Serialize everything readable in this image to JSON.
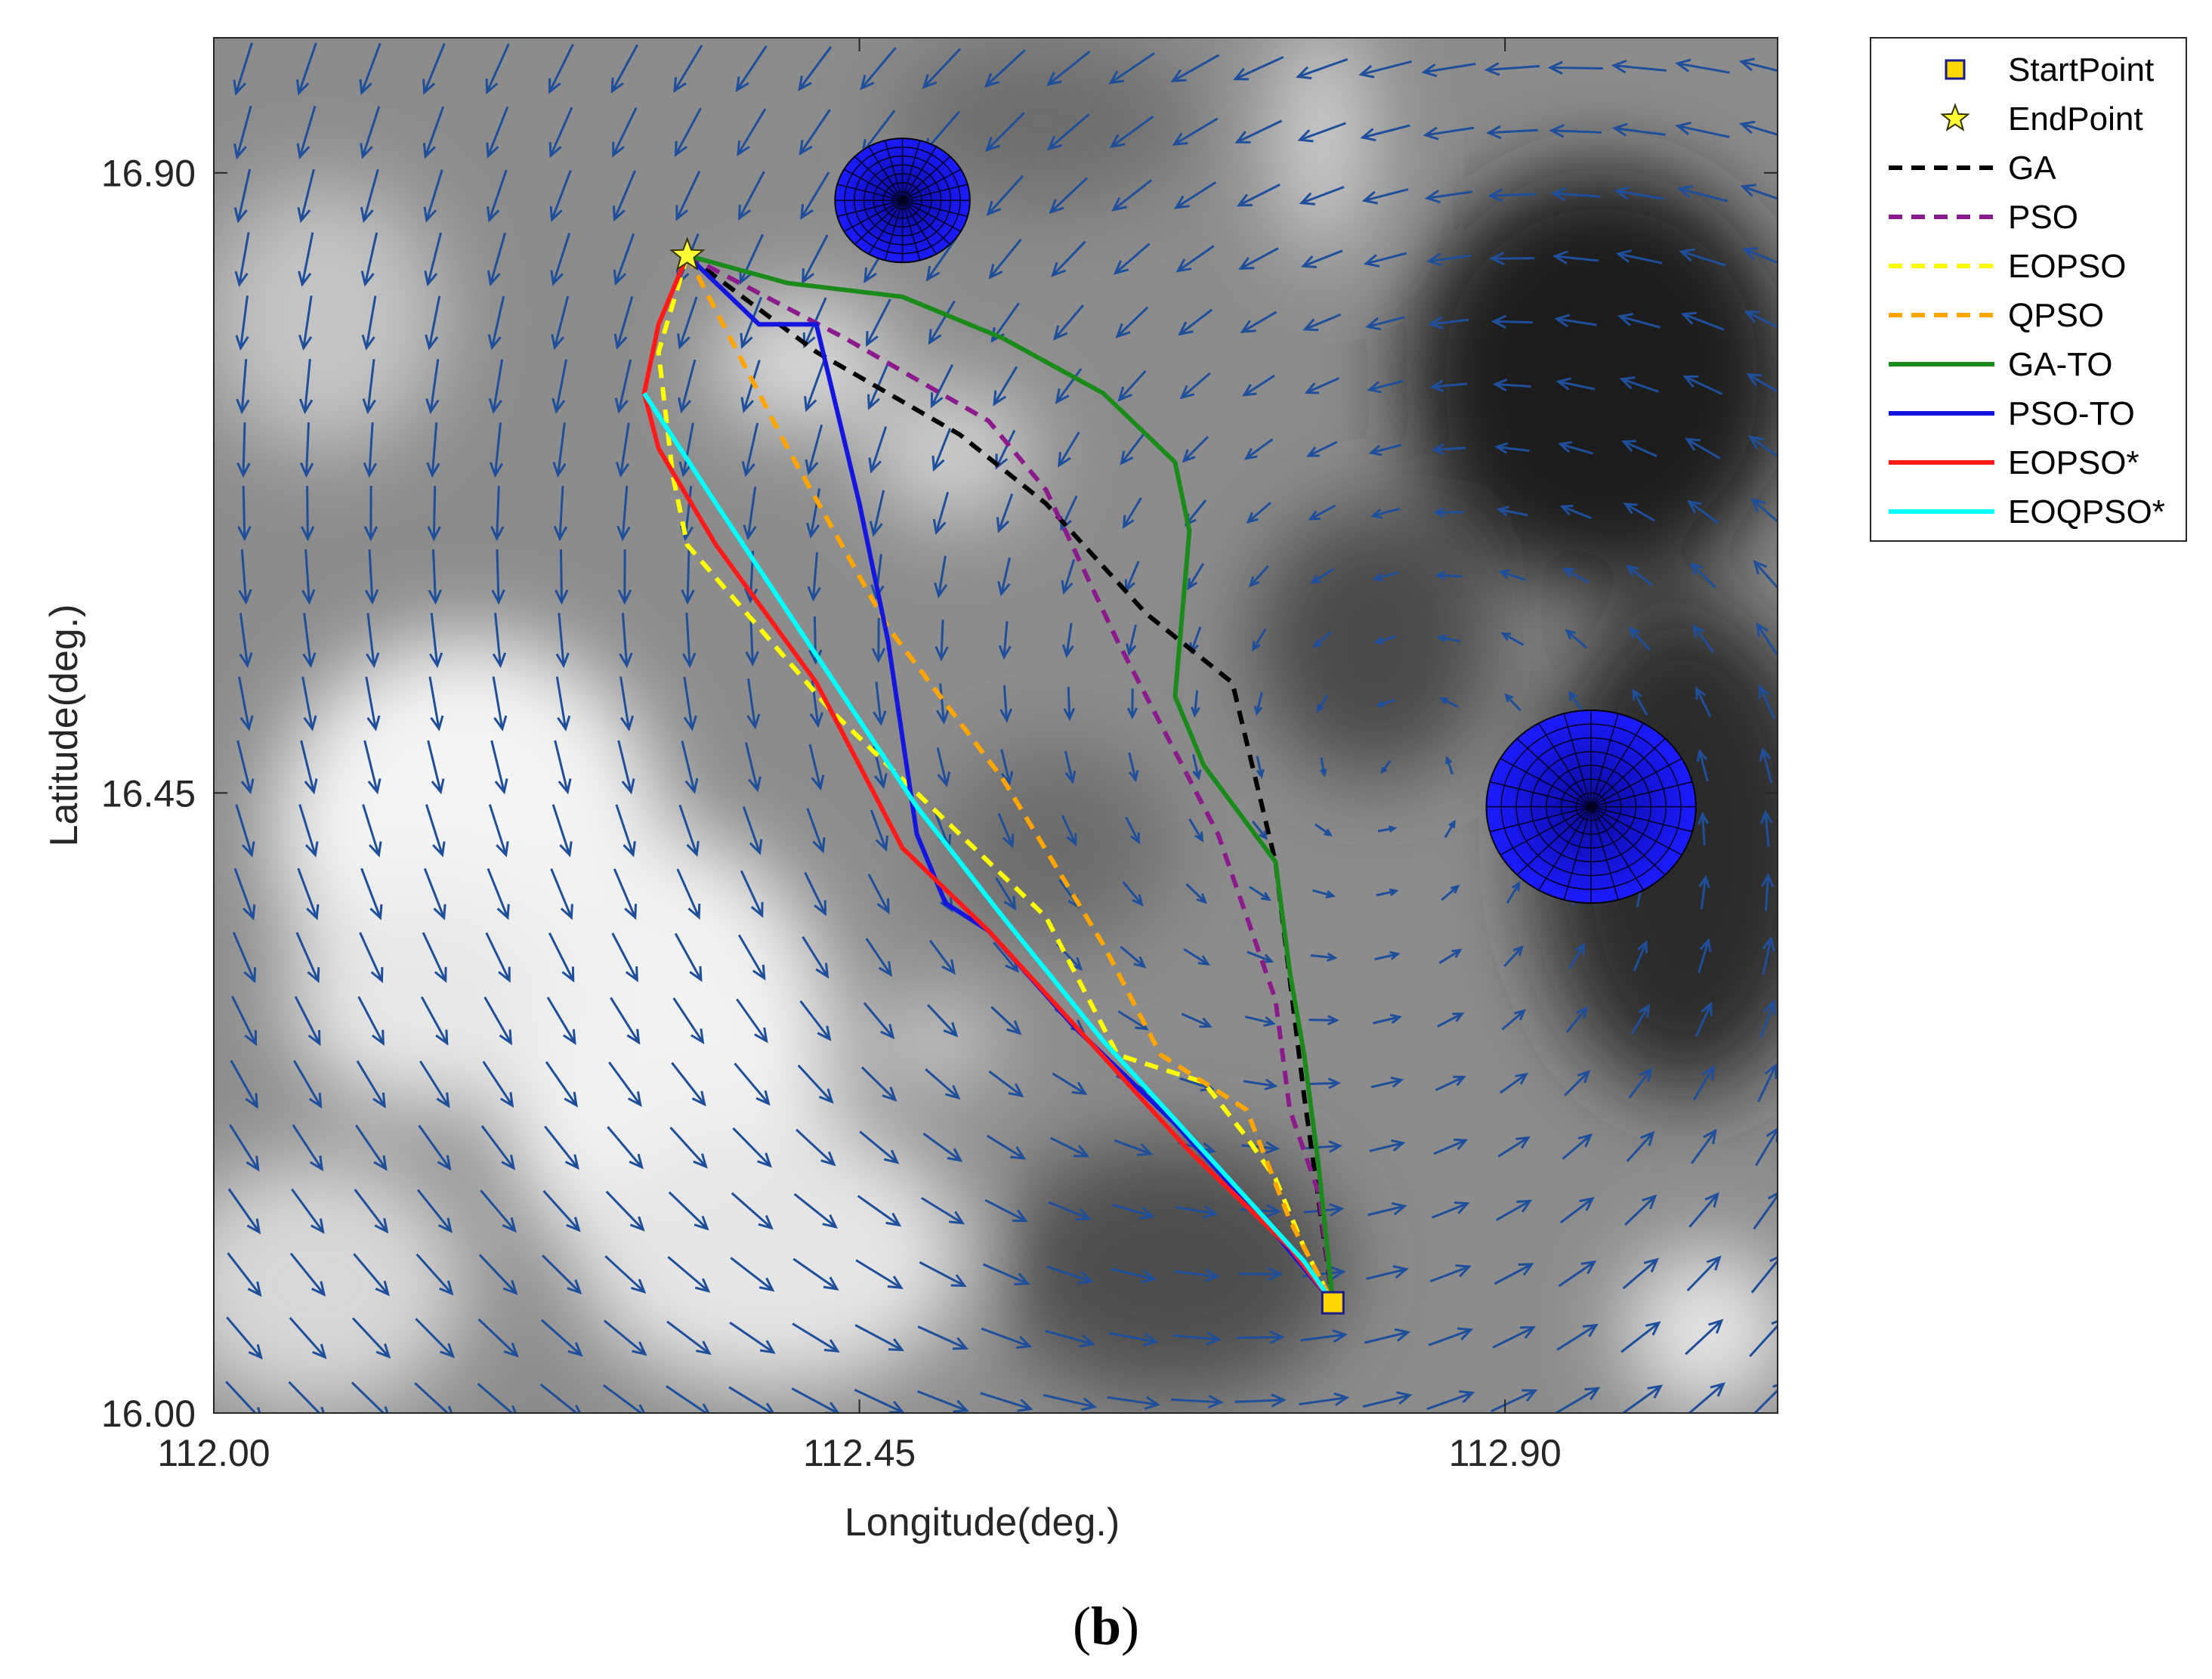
{
  "figure": {
    "panel_label_open": "(",
    "panel_label_letter": "b",
    "panel_label_close": ")"
  },
  "chart_data": {
    "type": "line",
    "xlabel": "Longitude(deg.)",
    "ylabel": "Latitude(deg.)",
    "xlim": [
      112.0,
      113.09
    ],
    "ylim": [
      16.0,
      16.998
    ],
    "xticks": [
      112.0,
      112.45,
      112.9
    ],
    "xtick_labels": [
      "112.00",
      "112.45",
      "112.90"
    ],
    "yticks": [
      16.0,
      16.45,
      16.9
    ],
    "ytick_labels": [
      "16.00",
      "16.45",
      "16.90"
    ],
    "background": "grayscale terrain/depth map with a blue quiver (arrow) current field",
    "quiver_color": "#1f4e9a",
    "obstacle_color": "#1111ee",
    "obstacles": [
      {
        "center": [
          112.48,
          16.88
        ],
        "radius_deg": 0.047
      },
      {
        "center": [
          112.96,
          16.44
        ],
        "radius_deg": 0.073
      }
    ],
    "start_point": {
      "label": "StartPoint",
      "x": 112.78,
      "y": 16.08,
      "color": "#ffd700"
    },
    "end_point": {
      "label": "EndPoint",
      "x": 112.33,
      "y": 16.84,
      "color": "#ffff33"
    },
    "legend_position": "outside-top-right",
    "series": [
      {
        "name": "GA",
        "style": "dashed",
        "color": "#000000",
        "x": [
          112.33,
          112.42,
          112.52,
          112.58,
          112.65,
          112.71,
          112.74,
          112.76,
          112.78
        ],
        "y": [
          16.84,
          16.77,
          16.71,
          16.66,
          16.58,
          16.53,
          16.4,
          16.23,
          16.08
        ]
      },
      {
        "name": "PSO",
        "style": "dashed",
        "color": "#8b1a8b",
        "x": [
          112.33,
          112.44,
          112.54,
          112.58,
          112.63,
          112.7,
          112.74,
          112.75,
          112.77,
          112.78
        ],
        "y": [
          16.84,
          16.78,
          16.72,
          16.67,
          16.56,
          16.42,
          16.3,
          16.22,
          16.16,
          16.08
        ]
      },
      {
        "name": "EOPSO",
        "style": "dashed",
        "color": "#ffff00",
        "x": [
          112.33,
          112.31,
          112.32,
          112.33,
          112.43,
          112.51,
          112.58,
          112.63,
          112.69,
          112.72,
          112.74,
          112.76,
          112.78
        ],
        "y": [
          16.84,
          16.77,
          16.68,
          16.63,
          16.51,
          16.43,
          16.36,
          16.26,
          16.24,
          16.2,
          16.17,
          16.12,
          16.08
        ]
      },
      {
        "name": "QPSO",
        "style": "dashed",
        "color": "#ffa500",
        "x": [
          112.33,
          112.4,
          112.47,
          112.55,
          112.62,
          112.66,
          112.69,
          112.72,
          112.75,
          112.78
        ],
        "y": [
          16.84,
          16.7,
          16.57,
          16.46,
          16.34,
          16.26,
          16.24,
          16.22,
          16.14,
          16.08
        ]
      },
      {
        "name": "GA-TO",
        "style": "solid",
        "color": "#1a8a1a",
        "x": [
          112.33,
          112.4,
          112.48,
          112.55,
          112.62,
          112.67,
          112.68,
          112.67,
          112.69,
          112.74,
          112.75,
          112.76,
          112.77,
          112.78
        ],
        "y": [
          16.84,
          16.82,
          16.81,
          16.78,
          16.74,
          16.69,
          16.64,
          16.52,
          16.47,
          16.4,
          16.32,
          16.26,
          16.18,
          16.08
        ]
      },
      {
        "name": "PSO-TO",
        "style": "solid",
        "color": "#1515e0",
        "x": [
          112.33,
          112.36,
          112.38,
          112.42,
          112.45,
          112.47,
          112.48,
          112.49,
          112.51,
          112.54,
          112.6,
          112.67,
          112.74,
          112.78
        ],
        "y": [
          16.84,
          16.81,
          16.79,
          16.79,
          16.66,
          16.56,
          16.49,
          16.42,
          16.37,
          16.35,
          16.28,
          16.21,
          16.13,
          16.08
        ]
      },
      {
        "name": "EOPSO*",
        "style": "solid",
        "color": "#ff1a1a",
        "x": [
          112.33,
          112.31,
          112.3,
          112.31,
          112.35,
          112.42,
          112.48,
          112.54,
          112.61,
          112.68,
          112.75,
          112.78
        ],
        "y": [
          16.84,
          16.79,
          16.74,
          16.7,
          16.63,
          16.53,
          16.41,
          16.35,
          16.27,
          16.19,
          16.12,
          16.08
        ]
      },
      {
        "name": "EOQPSO*",
        "style": "solid",
        "color": "#00ffff",
        "x": [
          112.3,
          112.35,
          112.42,
          112.49,
          112.55,
          112.62,
          112.69,
          112.76,
          112.78
        ],
        "y": [
          16.74,
          16.66,
          16.55,
          16.44,
          16.36,
          16.27,
          16.19,
          16.11,
          16.08
        ]
      }
    ]
  }
}
